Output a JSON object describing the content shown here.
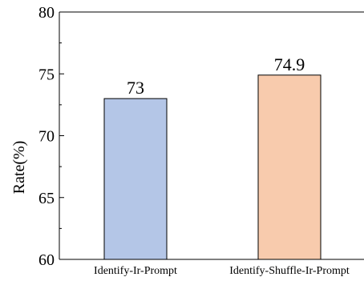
{
  "chart_data": {
    "type": "bar",
    "categories": [
      "Identify-Ir-Prompt",
      "Identify-Shuffle-Ir-Prompt"
    ],
    "values": [
      73,
      74.9
    ],
    "data_labels": [
      "73",
      "74.9"
    ],
    "colors": [
      "#b4c6e7",
      "#f8cbad"
    ],
    "bar_edge_color": "#000000",
    "ylabel": "Rate(%)",
    "ylim": [
      60,
      80
    ],
    "yticks": [
      60,
      65,
      70,
      75,
      80
    ],
    "ytick_labels": [
      "60",
      "65",
      "70",
      "75",
      "80"
    ],
    "minor_yticks": [
      62.5,
      67.5,
      72.5,
      77.5
    ],
    "grid": false,
    "legend": "none"
  }
}
